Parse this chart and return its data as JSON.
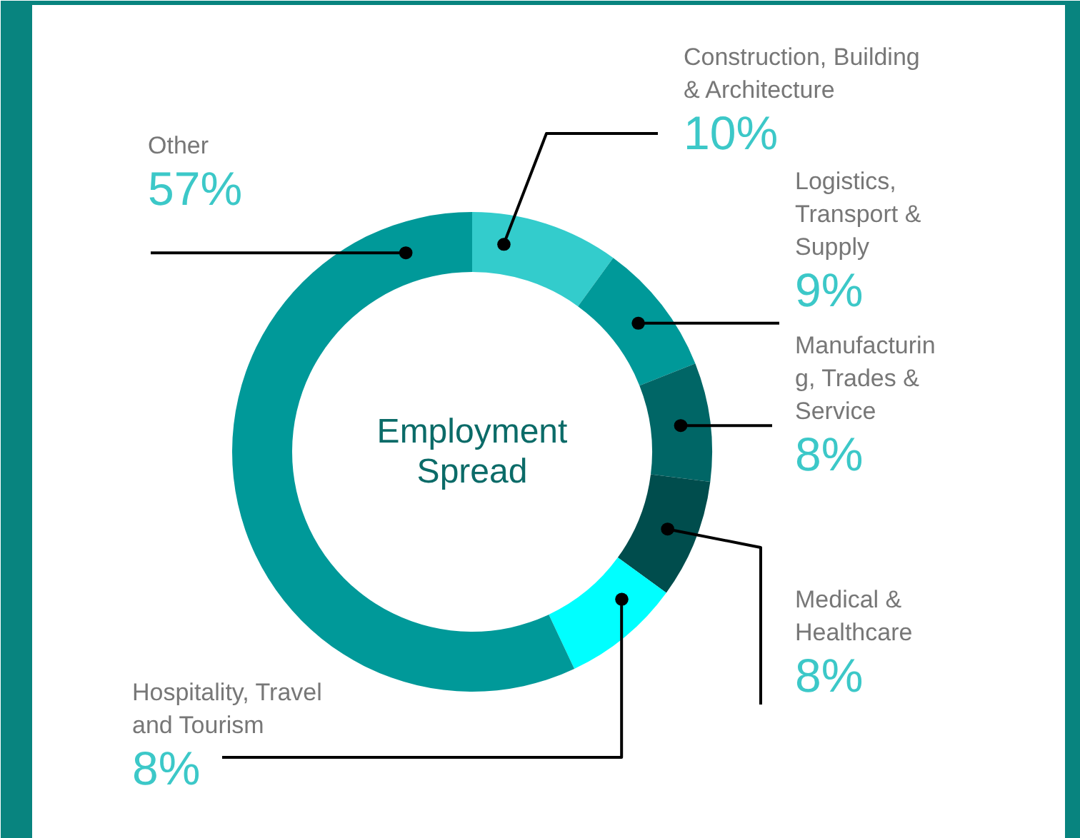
{
  "chart_data": {
    "type": "donut",
    "title": "Employment Spread",
    "categories": [
      "Construction, Building & Architecture",
      "Logistics, Transport & Supply",
      "Manufacturing, Trades & Service",
      "Medical & Healthcare",
      "Hospitality, Travel and Tourism",
      "Other"
    ],
    "values": [
      10,
      9,
      8,
      8,
      8,
      57
    ],
    "value_labels": [
      "10%",
      "9%",
      "8%",
      "8%",
      "8%",
      "57%"
    ],
    "colors": [
      "#33cccc",
      "#009999",
      "#006666",
      "#004d4d",
      "#00ffff",
      "#009999"
    ]
  }
}
